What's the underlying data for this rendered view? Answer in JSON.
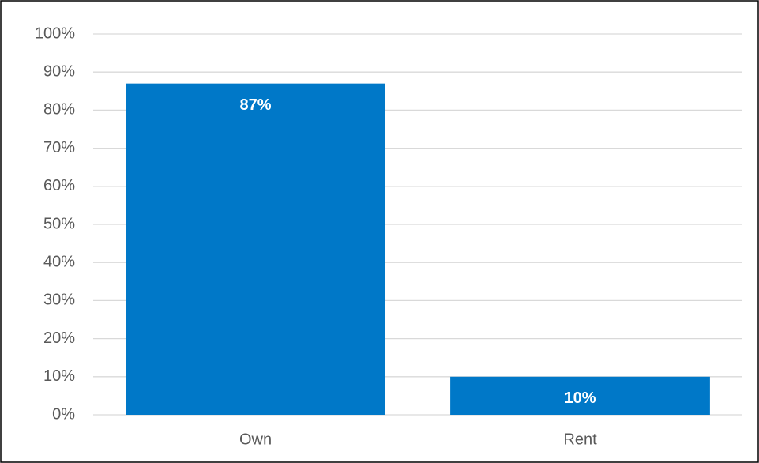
{
  "chart_data": {
    "type": "bar",
    "categories": [
      "Own",
      "Rent"
    ],
    "values": [
      87,
      10
    ],
    "value_labels": [
      "87%",
      "10%"
    ],
    "color": "#0078c8",
    "ylim": [
      0,
      100
    ],
    "yticks": [
      {
        "value": 0,
        "label": "0%"
      },
      {
        "value": 10,
        "label": "10%"
      },
      {
        "value": 20,
        "label": "20%"
      },
      {
        "value": 30,
        "label": "30%"
      },
      {
        "value": 40,
        "label": "40%"
      },
      {
        "value": 50,
        "label": "50%"
      },
      {
        "value": 60,
        "label": "60%"
      },
      {
        "value": 70,
        "label": "70%"
      },
      {
        "value": 80,
        "label": "80%"
      },
      {
        "value": 90,
        "label": "90%"
      },
      {
        "value": 100,
        "label": "100%"
      }
    ],
    "grid": true
  }
}
